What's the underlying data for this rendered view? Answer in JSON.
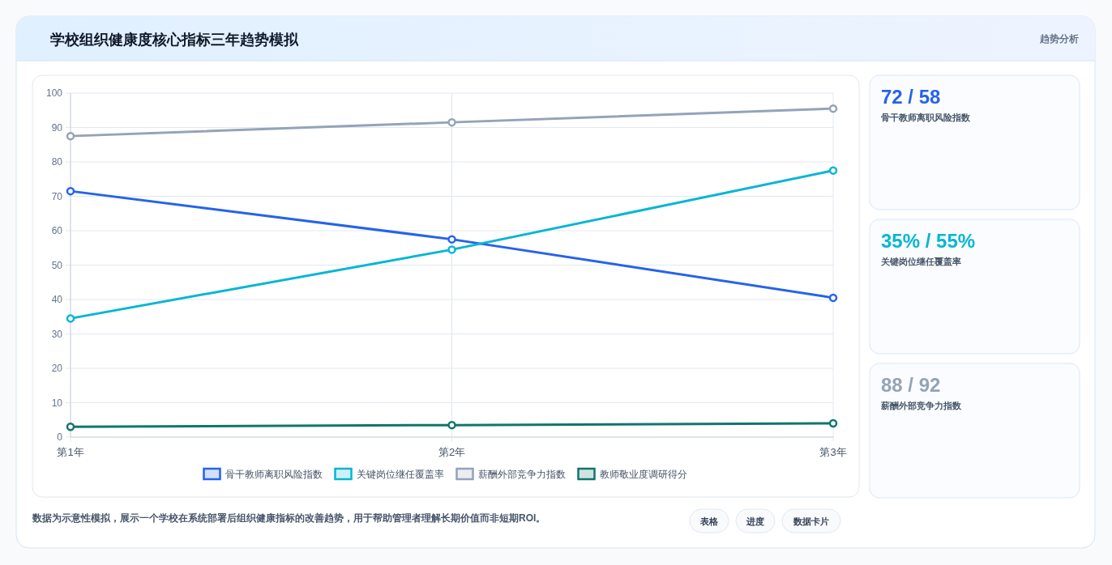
{
  "chart_data": [
    {
      "type": "line",
      "title": "学校组织健康度核心指标三年趋势模拟",
      "categories": [
        "第1年",
        "第2年",
        "第3年"
      ],
      "series": [
        {
          "name": "骨干教师离职风险指数",
          "color": "#2563eb",
          "values": [
            71.5,
            57.5,
            40.5
          ]
        },
        {
          "name": "关键岗位继任覆盖率",
          "color": "#06b6d4",
          "values": [
            34.5,
            54.5,
            77.5
          ]
        },
        {
          "name": "薪酬外部竞争力指数",
          "color": "#94a3b8",
          "values": [
            87.5,
            91.5,
            95.5
          ]
        },
        {
          "name": "教师敬业度调研得分",
          "color": "#0f766e",
          "values": [
            3,
            3.5,
            4
          ]
        }
      ],
      "ylim": [
        0,
        100
      ],
      "yticks": [
        0,
        10,
        20,
        30,
        40,
        50,
        60,
        70,
        80,
        90,
        100
      ],
      "grid": true,
      "legend": "bottom",
      "marker": "circle",
      "line_style": "solid",
      "annotations": [
        "数据为示意性模拟，展示一个学校在系统部署后组织健康指标的改善趋势，用于帮助管理者理解长期价值而非短期ROI。",
        "表格",
        "进度",
        "数据卡片"
      ]
    },
    {
      "type": "other",
      "title": "趋势分析",
      "annotations": [
        "72 / 58",
        "骨干教师离职风险指数",
        "35% / 55%",
        "关键岗位继任覆盖率",
        "88 / 92",
        "薪酬外部竞争力指数"
      ],
      "colors": [
        "#2563eb",
        "#06b6d4",
        "#94a3b8"
      ]
    }
  ]
}
